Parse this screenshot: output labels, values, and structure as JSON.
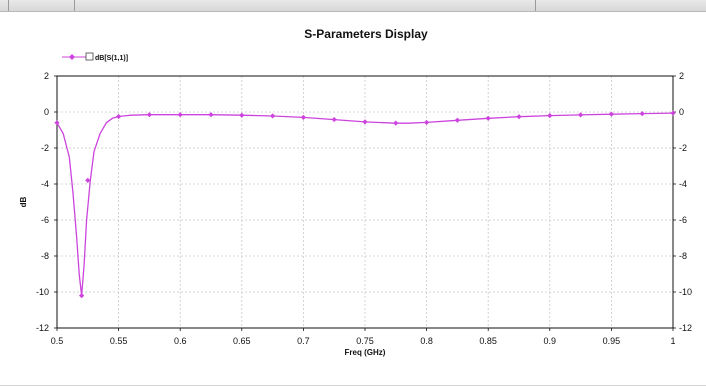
{
  "window": {
    "toolbar_segments": 3
  },
  "chart_data": {
    "type": "line",
    "title": "S-Parameters Display",
    "xlabel": "Freq (GHz)",
    "ylabel": "dB",
    "xlim": [
      0.5,
      1.0
    ],
    "ylim": [
      -12,
      2
    ],
    "xticks": [
      "0.5",
      "0.55",
      "0.6",
      "0.65",
      "0.7",
      "0.75",
      "0.8",
      "0.85",
      "0.9",
      "0.95",
      "1"
    ],
    "yticks": [
      "2",
      "0",
      "-2",
      "-4",
      "-6",
      "-8",
      "-10",
      "-12"
    ],
    "grid": true,
    "legend_position": "top-left",
    "series": [
      {
        "name": "dB[S(1,1)]",
        "color": "#cc44dd",
        "marker": "diamond",
        "x": [
          0.5,
          0.505,
          0.51,
          0.513,
          0.516,
          0.518,
          0.52,
          0.522,
          0.524,
          0.527,
          0.53,
          0.535,
          0.54,
          0.545,
          0.55,
          0.56,
          0.575,
          0.6,
          0.625,
          0.65,
          0.675,
          0.7,
          0.725,
          0.75,
          0.775,
          0.785,
          0.8,
          0.825,
          0.85,
          0.875,
          0.9,
          0.925,
          0.95,
          0.975,
          1.0
        ],
        "y": [
          -0.6,
          -1.2,
          -2.5,
          -4.5,
          -7.0,
          -9.0,
          -10.2,
          -8.5,
          -6.0,
          -3.8,
          -2.2,
          -1.2,
          -0.6,
          -0.35,
          -0.25,
          -0.18,
          -0.15,
          -0.15,
          -0.15,
          -0.18,
          -0.22,
          -0.3,
          -0.42,
          -0.55,
          -0.62,
          -0.62,
          -0.58,
          -0.46,
          -0.35,
          -0.26,
          -0.2,
          -0.16,
          -0.12,
          -0.09,
          -0.06
        ],
        "marker_x": [
          0.5,
          0.525,
          0.55,
          0.575,
          0.6,
          0.625,
          0.65,
          0.675,
          0.7,
          0.725,
          0.75,
          0.775,
          0.8,
          0.825,
          0.85,
          0.875,
          0.9,
          0.925,
          0.95,
          0.975,
          1.0
        ],
        "marker_y": [
          -0.6,
          -3.8,
          -0.25,
          -0.15,
          -0.15,
          -0.15,
          -0.18,
          -0.22,
          -0.3,
          -0.42,
          -0.55,
          -0.62,
          -0.58,
          -0.46,
          -0.35,
          -0.26,
          -0.2,
          -0.16,
          -0.12,
          -0.09,
          -0.06
        ],
        "min_marker": {
          "x": 0.52,
          "y": -10.2
        }
      }
    ]
  }
}
